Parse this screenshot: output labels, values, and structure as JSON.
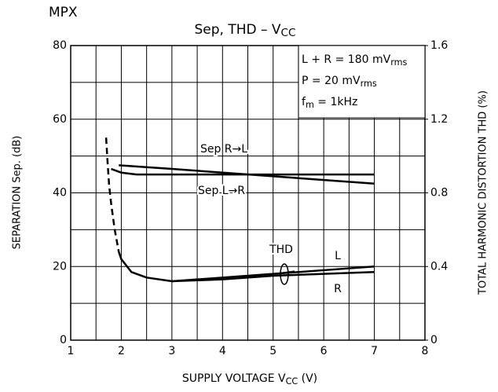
{
  "chart_data": {
    "type": "line",
    "header": "MPX",
    "title": [
      {
        "t": "Sep, THD  –  V"
      },
      {
        "t": "CC",
        "sub": true
      }
    ],
    "xlabel": [
      {
        "t": "SUPPLY VOLTAGE   V"
      },
      {
        "t": "CC",
        "sub": true
      },
      {
        "t": "   (V)"
      }
    ],
    "ylabel": "SEPARATION    Sep.   (dB)",
    "y2label": "TOTAL HARMONIC DISTORTION    THD    (%)",
    "conditions": [
      [
        {
          "t": "L + R = 180 mV"
        },
        {
          "t": "rms",
          "sub": true
        }
      ],
      [
        {
          "t": "P = 20 mV"
        },
        {
          "t": "rms",
          "sub": true
        }
      ],
      [
        {
          "t": "f"
        },
        {
          "t": "m",
          "sub": true
        },
        {
          "t": " = 1kHz"
        }
      ]
    ],
    "curve_labels": [
      "Sep R→L",
      "Sep L→R",
      "THD",
      "L",
      "R"
    ],
    "xlim": [
      1,
      8
    ],
    "xticks": [
      1,
      2,
      3,
      4,
      5,
      6,
      7,
      8
    ],
    "minor_xticks": [
      1.5,
      2.5,
      3.5,
      4.5,
      5.5,
      6.5,
      7.5
    ],
    "ylim": [
      0,
      80
    ],
    "yticks": [
      0,
      20,
      40,
      60,
      80
    ],
    "minor_yticks": [
      10,
      30,
      50,
      70
    ],
    "y2lim": [
      0,
      1.6
    ],
    "y2ticks": [
      0,
      0.4,
      0.8,
      1.2,
      1.6
    ],
    "grid": true,
    "series": [
      {
        "name": "Sep R→L",
        "color": "#000",
        "x": [
          1.95,
          3,
          4,
          5,
          6,
          7
        ],
        "values": [
          47.5,
          46.5,
          45.5,
          44.5,
          43.5,
          42.5
        ]
      },
      {
        "name": "Sep L→R",
        "color": "#000",
        "x": [
          1.8,
          2,
          2.3,
          3,
          4,
          5,
          6,
          7
        ],
        "values": [
          46.5,
          45.5,
          45,
          45,
          45,
          45,
          45,
          45
        ]
      },
      {
        "style": "dashed",
        "color": "#000",
        "axis": "y2",
        "x": [
          1.7,
          1.73,
          1.76,
          1.8,
          1.87,
          1.95
        ],
        "values": [
          1.1,
          0.96,
          0.84,
          0.74,
          0.6,
          0.48
        ]
      },
      {
        "name": "L",
        "color": "#000",
        "axis": "y2",
        "x": [
          1.95,
          2,
          2.2,
          2.5,
          3,
          4,
          5,
          6,
          7
        ],
        "values": [
          0.48,
          0.44,
          0.37,
          0.34,
          0.32,
          0.34,
          0.36,
          0.38,
          0.4
        ]
      },
      {
        "name": "R",
        "color": "#000",
        "axis": "y2",
        "x": [
          3,
          4,
          5,
          6,
          7
        ],
        "values": [
          0.32,
          0.33,
          0.35,
          0.36,
          0.37
        ]
      }
    ]
  }
}
